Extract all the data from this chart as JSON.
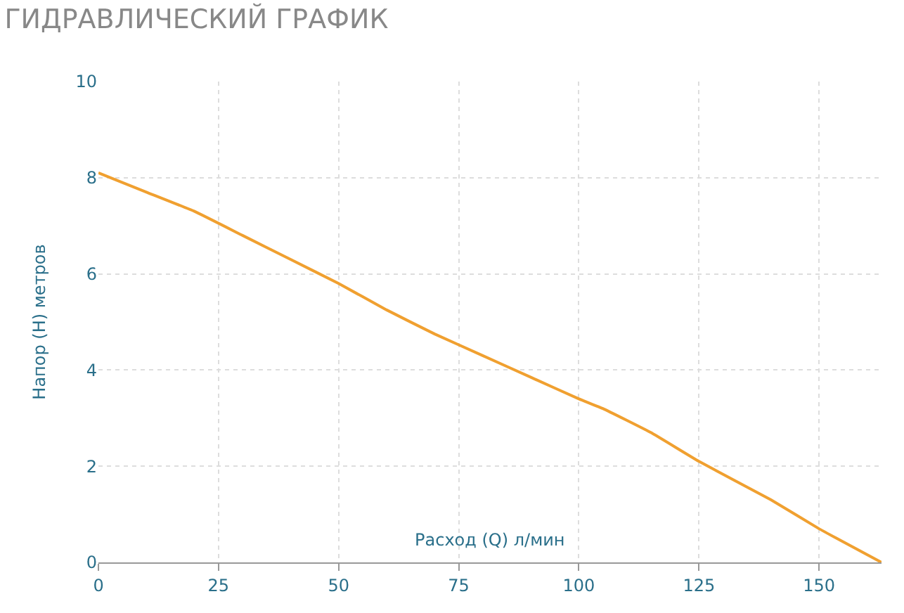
{
  "chart_data": {
    "type": "line",
    "title": "ГИДРАВЛИЧЕСКИЙ ГРАФИК",
    "xlabel": "Расход (Q) л/мин",
    "ylabel": "Напор (H) метров",
    "x": [
      0,
      10,
      20,
      30,
      40,
      50,
      60,
      70,
      80,
      90,
      100,
      105,
      115,
      125,
      140,
      150,
      163
    ],
    "series": [
      {
        "color": "#f0a030",
        "values": [
          8.1,
          7.7,
          7.3,
          6.8,
          6.3,
          5.8,
          5.25,
          4.75,
          4.3,
          3.85,
          3.4,
          3.2,
          2.7,
          2.1,
          1.3,
          0.7,
          0
        ]
      }
    ],
    "xlim": [
      0,
      163
    ],
    "xticks": [
      0,
      25,
      50,
      75,
      100,
      125,
      150
    ],
    "ylim": [
      0,
      10
    ],
    "yticks": [
      0,
      2,
      4,
      6,
      8,
      10
    ],
    "grid": true,
    "legend": false,
    "marker": "none",
    "line_style": "solid"
  }
}
